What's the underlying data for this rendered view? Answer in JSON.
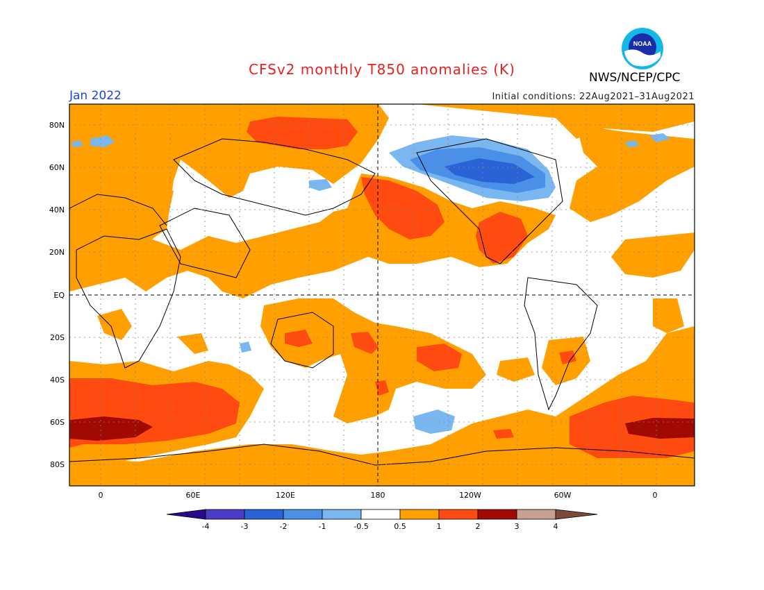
{
  "title": "CFSv2 monthly T850 anomalies (K)",
  "month": "Jan 2022",
  "initial_conditions": "Initial conditions: 22Aug2021–31Aug2021",
  "agency": "NWS/NCEP/CPC",
  "logo_text": "NOAA",
  "lat_labels": [
    "80N",
    "60N",
    "40N",
    "20N",
    "EQ",
    "20S",
    "40S",
    "60S",
    "80S"
  ],
  "lon_labels": [
    "0",
    "60E",
    "120E",
    "180",
    "120W",
    "60W",
    "0"
  ],
  "colorbar": {
    "tick_labels": [
      "-4",
      "-3",
      "-2",
      "-1",
      "-0.5",
      "0.5",
      "1",
      "2",
      "3",
      "4"
    ],
    "colors": [
      "#2a0a8c",
      "#4a3cc6",
      "#2a63d6",
      "#4a8fe8",
      "#7ab7f0",
      "#ffffff",
      "#ffa000",
      "#ff4a10",
      "#a00a00",
      "#c8a090",
      "#7a4a3a"
    ]
  },
  "colors": {
    "warm_1": "#ffa000",
    "warm_2": "#ff4a10",
    "warm_3": "#a00a00",
    "cool_1": "#7ab7f0",
    "cool_2": "#4a8fe8",
    "cool_3": "#2a63d6",
    "cool_4": "#4a3cc6"
  }
}
